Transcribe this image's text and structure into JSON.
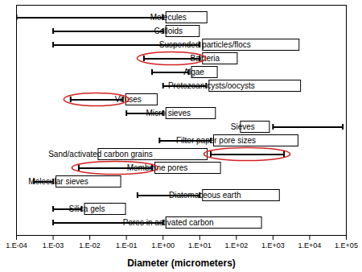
{
  "chart_data": {
    "type": "range",
    "xlabel": "Diameter (micrometers)",
    "categories": [
      "Molecules",
      "Colloids",
      "Suspended particles/flocs",
      "Bacteria",
      "Algae",
      "Protozoan cysts/oocysts",
      "Viruses",
      "Micro sieves",
      "Sieves",
      "Filter paper pore sizes",
      "Sand/activated carbon grains",
      "Membrane pores",
      "Molecular sieves",
      "Diatomaceous earth",
      "Silica gels",
      "Pores in activated carbon"
    ],
    "values": [
      [
        0.0001,
        1
      ],
      [
        0.001,
        1
      ],
      [
        0.001,
        10
      ],
      [
        0.3,
        10
      ],
      [
        0.5,
        5
      ],
      [
        1,
        15
      ],
      [
        0.003,
        0.08
      ],
      [
        0.1,
        1
      ],
      [
        1000,
        80000
      ],
      [
        0.8,
        20
      ],
      [
        20,
        2000
      ],
      [
        0.005,
        0.5
      ],
      [
        0.0003,
        0.001
      ],
      [
        0.2,
        10
      ],
      [
        0.001,
        0.006
      ],
      [
        0.001,
        1
      ]
    ],
    "color": "#000000",
    "circled": [
      "Bacteria",
      "Viruses",
      "Sand/activated carbon grains",
      "Membrane pores"
    ],
    "log": "x",
    "xlim": [
      0.0001,
      100000
    ],
    "xticks": [
      {
        "value": 0.0001,
        "label": "1.E-04"
      },
      {
        "value": 0.001,
        "label": "1.E-03"
      },
      {
        "value": 0.01,
        "label": "1.E-02"
      },
      {
        "value": 0.1,
        "label": "1.E-01"
      },
      {
        "value": 1,
        "label": "1.E+00"
      },
      {
        "value": 10,
        "label": "1.E+01"
      },
      {
        "value": 100,
        "label": "1.E+02"
      },
      {
        "value": 1000,
        "label": "1.E+03"
      },
      {
        "value": 10000,
        "label": "1.E+04"
      },
      {
        "value": 100000,
        "label": "1.E+05"
      }
    ],
    "grid": false,
    "tick_labels": "x"
  }
}
